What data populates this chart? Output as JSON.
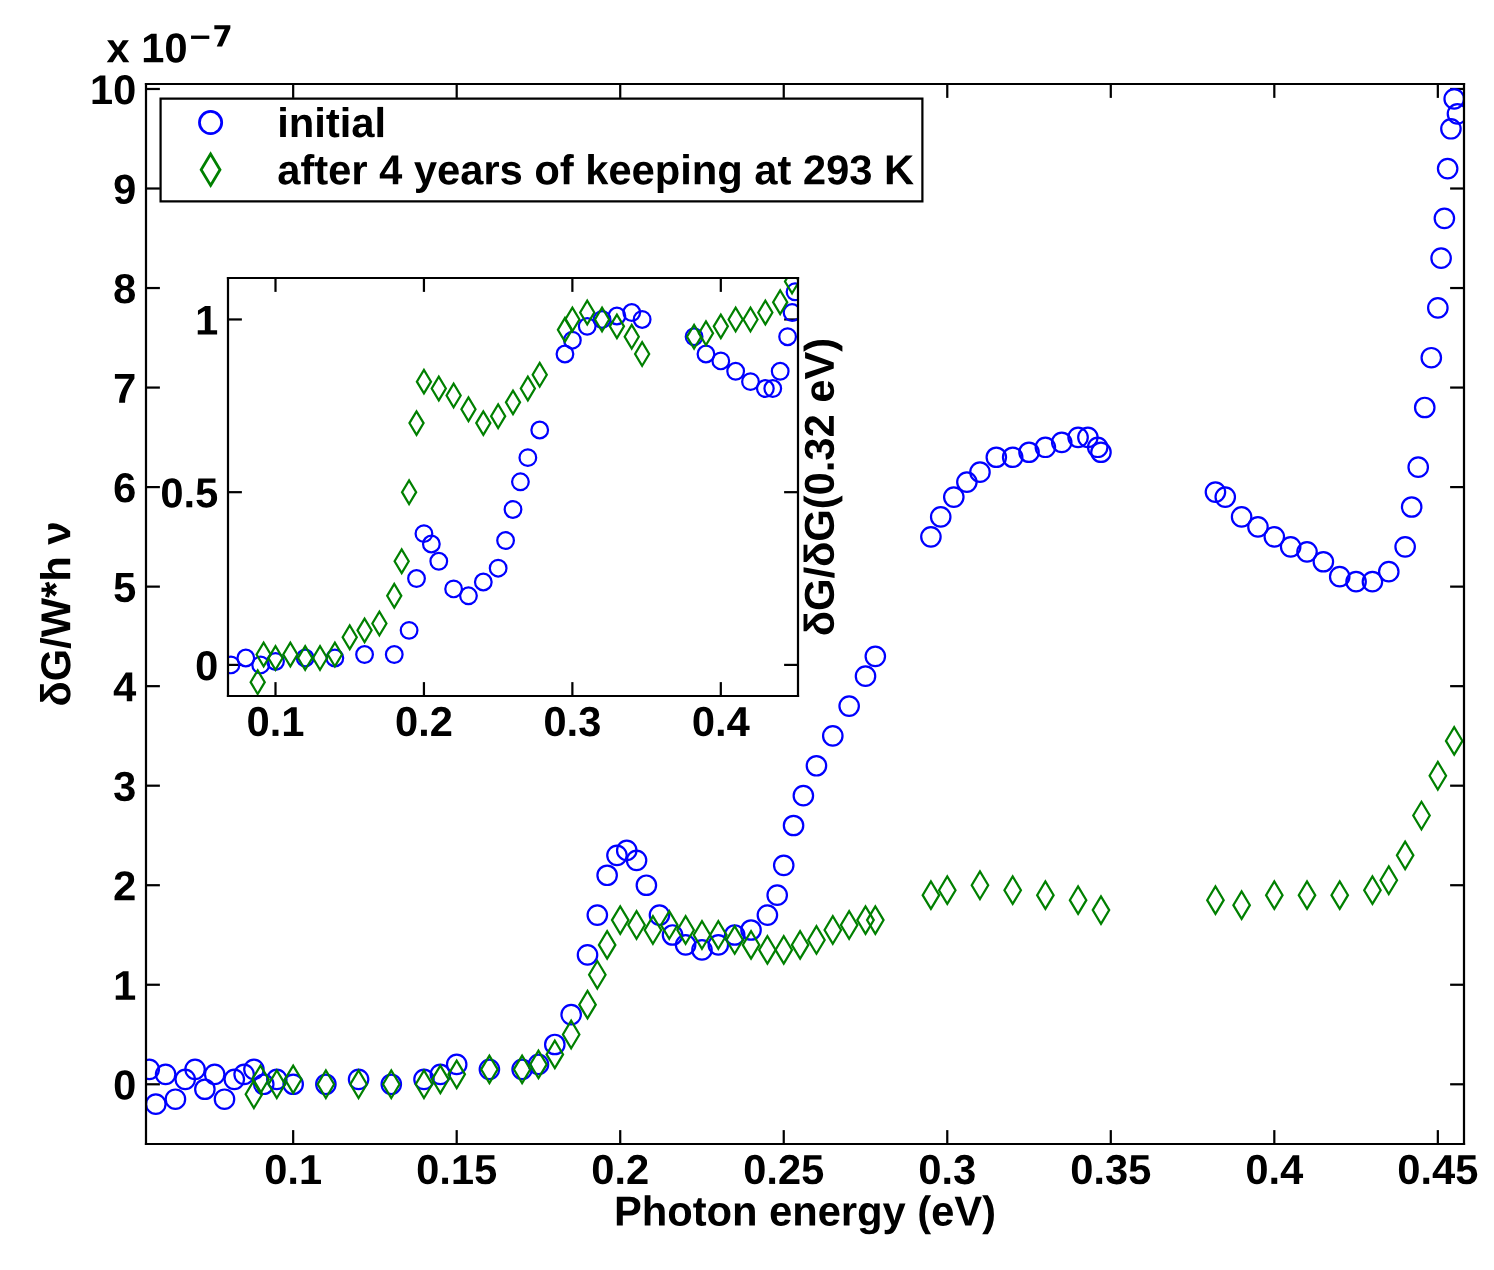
{
  "chart_data": [
    {
      "type": "scatter",
      "xlabel": "Photon energy (eV)",
      "ylabel": "δG/W*h ν",
      "annotations": [
        "x 10$^{−7}$"
      ],
      "xlim": [
        0.055,
        0.458
      ],
      "ylim": [
        -0.6,
        10.05
      ],
      "xticks": [
        0.1,
        0.15,
        0.2,
        0.25,
        0.3,
        0.35,
        0.4,
        0.45
      ],
      "yticks": [
        0,
        1,
        2,
        3,
        4,
        5,
        6,
        7,
        8,
        9,
        10
      ],
      "legend": "top left",
      "grid": false,
      "series": [
        {
          "name": "initial",
          "color": "#0000ff",
          "marker": "circle",
          "x": [
            0.056,
            0.058,
            0.061,
            0.064,
            0.067,
            0.07,
            0.073,
            0.076,
            0.079,
            0.082,
            0.085,
            0.088,
            0.091,
            0.095,
            0.1,
            0.11,
            0.12,
            0.13,
            0.14,
            0.145,
            0.15,
            0.16,
            0.17,
            0.175,
            0.18,
            0.185,
            0.19,
            0.193,
            0.196,
            0.199,
            0.202,
            0.205,
            0.208,
            0.212,
            0.216,
            0.22,
            0.225,
            0.23,
            0.235,
            0.24,
            0.245,
            0.248,
            0.25,
            0.253,
            0.256,
            0.26,
            0.265,
            0.27,
            0.275,
            0.278,
            0.295,
            0.298,
            0.302,
            0.306,
            0.31,
            0.315,
            0.32,
            0.325,
            0.33,
            0.335,
            0.34,
            0.343,
            0.346,
            0.347,
            0.382,
            0.385,
            0.39,
            0.395,
            0.4,
            0.405,
            0.41,
            0.415,
            0.42,
            0.425,
            0.43,
            0.435,
            0.44,
            0.442,
            0.444,
            0.446,
            0.448,
            0.45,
            0.451,
            0.452,
            0.453,
            0.454,
            0.455,
            0.456
          ],
          "values": [
            0.15,
            -0.2,
            0.1,
            -0.15,
            0.05,
            0.15,
            -0.05,
            0.1,
            -0.15,
            0.05,
            0.1,
            0.15,
            0.0,
            0.05,
            0.0,
            0.0,
            0.05,
            0.0,
            0.05,
            0.1,
            0.2,
            0.15,
            0.15,
            0.2,
            0.4,
            0.7,
            1.3,
            1.7,
            2.1,
            2.3,
            2.35,
            2.25,
            2.0,
            1.7,
            1.5,
            1.4,
            1.35,
            1.4,
            1.5,
            1.55,
            1.7,
            1.9,
            2.2,
            2.6,
            2.9,
            3.2,
            3.5,
            3.8,
            4.1,
            4.3,
            5.5,
            5.7,
            5.9,
            6.05,
            6.15,
            6.3,
            6.3,
            6.35,
            6.4,
            6.45,
            6.5,
            6.5,
            6.4,
            6.35,
            5.95,
            5.9,
            5.7,
            5.6,
            5.5,
            5.4,
            5.35,
            5.25,
            5.1,
            5.05,
            5.05,
            5.15,
            5.4,
            5.8,
            6.2,
            6.8,
            7.3,
            7.8,
            8.3,
            8.7,
            9.2,
            9.6,
            9.9,
            9.75
          ]
        },
        {
          "name": "after 4 years of keeping at 293 K",
          "color": "#008000",
          "marker": "diamond",
          "x": [
            0.088,
            0.09,
            0.095,
            0.1,
            0.11,
            0.12,
            0.13,
            0.14,
            0.145,
            0.15,
            0.16,
            0.17,
            0.175,
            0.18,
            0.185,
            0.19,
            0.193,
            0.196,
            0.2,
            0.205,
            0.21,
            0.215,
            0.22,
            0.225,
            0.23,
            0.235,
            0.24,
            0.245,
            0.25,
            0.255,
            0.26,
            0.265,
            0.27,
            0.275,
            0.278,
            0.295,
            0.3,
            0.31,
            0.32,
            0.33,
            0.34,
            0.347,
            0.382,
            0.39,
            0.4,
            0.41,
            0.42,
            0.43,
            0.435,
            0.44,
            0.445,
            0.45,
            0.455
          ],
          "values": [
            -0.1,
            0.05,
            0.0,
            0.05,
            0.0,
            0.0,
            0.0,
            0.0,
            0.05,
            0.1,
            0.15,
            0.15,
            0.2,
            0.3,
            0.5,
            0.8,
            1.1,
            1.4,
            1.65,
            1.6,
            1.55,
            1.6,
            1.55,
            1.5,
            1.5,
            1.45,
            1.4,
            1.35,
            1.35,
            1.4,
            1.45,
            1.55,
            1.6,
            1.65,
            1.65,
            1.9,
            1.95,
            2.0,
            1.95,
            1.9,
            1.85,
            1.75,
            1.85,
            1.8,
            1.9,
            1.9,
            1.9,
            1.95,
            2.05,
            2.3,
            2.7,
            3.1,
            3.45
          ]
        }
      ]
    },
    {
      "type": "scatter",
      "ylabel": "δG/δG(0.32 eV)",
      "xlim": [
        0.068,
        0.452
      ],
      "ylim": [
        -0.09,
        1.12
      ],
      "xticks": [
        0.1,
        0.2,
        0.3,
        0.4
      ],
      "yticks": [
        0,
        0.5,
        1
      ],
      "grid": false,
      "series": [
        {
          "color": "#0000ff",
          "marker": "circle",
          "x": [
            0.07,
            0.08,
            0.09,
            0.1,
            0.12,
            0.14,
            0.16,
            0.18,
            0.19,
            0.195,
            0.2,
            0.205,
            0.21,
            0.22,
            0.23,
            0.24,
            0.25,
            0.255,
            0.26,
            0.265,
            0.27,
            0.278,
            0.295,
            0.3,
            0.31,
            0.32,
            0.33,
            0.34,
            0.347,
            0.382,
            0.39,
            0.4,
            0.41,
            0.42,
            0.43,
            0.435,
            0.44,
            0.445,
            0.448,
            0.45
          ],
          "values": [
            0.0,
            0.02,
            0.0,
            0.01,
            0.02,
            0.02,
            0.03,
            0.03,
            0.1,
            0.25,
            0.38,
            0.35,
            0.3,
            0.22,
            0.2,
            0.24,
            0.28,
            0.36,
            0.45,
            0.53,
            0.6,
            0.68,
            0.9,
            0.94,
            0.98,
            1.0,
            1.01,
            1.02,
            1.0,
            0.95,
            0.9,
            0.88,
            0.85,
            0.82,
            0.8,
            0.8,
            0.85,
            0.95,
            1.02,
            1.08
          ]
        },
        {
          "color": "#008000",
          "marker": "diamond",
          "x": [
            0.088,
            0.092,
            0.1,
            0.11,
            0.12,
            0.13,
            0.14,
            0.15,
            0.16,
            0.17,
            0.18,
            0.185,
            0.19,
            0.195,
            0.2,
            0.21,
            0.22,
            0.23,
            0.24,
            0.25,
            0.26,
            0.27,
            0.278,
            0.295,
            0.3,
            0.31,
            0.32,
            0.33,
            0.34,
            0.347,
            0.382,
            0.39,
            0.4,
            0.41,
            0.42,
            0.43,
            0.44,
            0.448
          ],
          "values": [
            -0.05,
            0.03,
            0.02,
            0.03,
            0.02,
            0.02,
            0.03,
            0.08,
            0.1,
            0.12,
            0.2,
            0.3,
            0.5,
            0.7,
            0.82,
            0.8,
            0.78,
            0.74,
            0.7,
            0.72,
            0.76,
            0.8,
            0.84,
            0.97,
            1.0,
            1.02,
            1.0,
            0.98,
            0.95,
            0.9,
            0.95,
            0.96,
            0.98,
            1.0,
            1.0,
            1.02,
            1.05,
            1.11
          ]
        }
      ]
    }
  ]
}
